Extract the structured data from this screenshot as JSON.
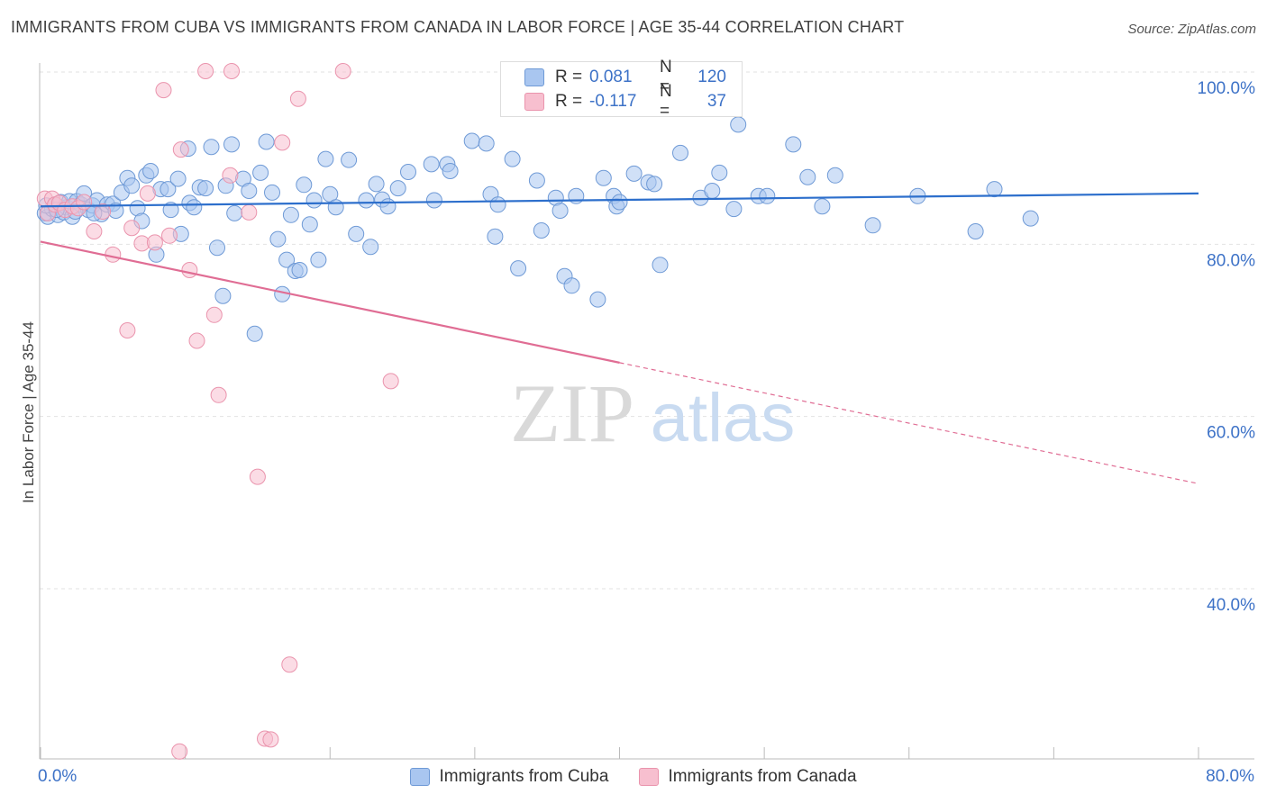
{
  "title": "IMMIGRANTS FROM CUBA VS IMMIGRANTS FROM CANADA IN LABOR FORCE | AGE 35-44 CORRELATION CHART",
  "source": "Source: ZipAtlas.com",
  "watermark": {
    "zip": "ZIP",
    "atlas": "atlas"
  },
  "legend": {
    "rows": [
      {
        "r_label": "R =",
        "r_value": "0.081",
        "n_label": "N =",
        "n_value": "120"
      },
      {
        "r_label": "R =",
        "r_value": "-0.117",
        "n_label": "N =",
        "n_value": "37"
      }
    ]
  },
  "colors": {
    "cuba_fill": "#a9c6f0",
    "cuba_stroke": "#6f9ad6",
    "cuba_line": "#2d6fcc",
    "canada_fill": "#f7bfcf",
    "canada_stroke": "#ea94ad",
    "canada_line": "#e06d94",
    "tick_text": "#3d72c7",
    "grid": "#e2e2e2"
  },
  "chart_data": {
    "type": "scatter",
    "title": "IMMIGRANTS FROM CUBA VS IMMIGRANTS FROM CANADA IN LABOR FORCE | AGE 35-44 CORRELATION CHART",
    "xlabel": "",
    "ylabel": "In Labor Force | Age 35-44",
    "xlim": [
      0,
      80
    ],
    "ylim": [
      20.5,
      101.5
    ],
    "x_tick_labels": [
      "0.0%",
      "80.0%"
    ],
    "y_ticks": [
      40,
      60,
      80,
      100
    ],
    "y_tick_labels": [
      "40.0%",
      "60.0%",
      "80.0%",
      "100.0%"
    ],
    "grid": true,
    "series": [
      {
        "name": "Immigrants from Cuba",
        "r": 0.081,
        "n": 120,
        "trend": {
          "x0": 0,
          "y0": 84.4,
          "x1": 80,
          "y1": 85.9,
          "solid_until": 80
        },
        "points": [
          [
            0.3,
            83.6
          ],
          [
            0.5,
            83.2
          ],
          [
            0.8,
            84.1
          ],
          [
            1.0,
            84.6
          ],
          [
            1.2,
            83.4
          ],
          [
            1.4,
            84.9
          ],
          [
            1.6,
            83.7
          ],
          [
            1.8,
            84.3
          ],
          [
            2.0,
            85.0
          ],
          [
            2.2,
            83.2
          ],
          [
            2.5,
            85.0
          ],
          [
            2.8,
            84.6
          ],
          [
            3.0,
            85.9
          ],
          [
            3.3,
            84.0
          ],
          [
            3.6,
            84.5
          ],
          [
            3.9,
            85.1
          ],
          [
            4.2,
            83.5
          ],
          [
            4.6,
            84.6
          ],
          [
            5.0,
            84.7
          ],
          [
            5.2,
            83.9
          ],
          [
            5.6,
            86.0
          ],
          [
            6.0,
            87.7
          ],
          [
            6.3,
            86.8
          ],
          [
            6.7,
            84.2
          ],
          [
            7.0,
            82.7
          ],
          [
            7.3,
            88.0
          ],
          [
            7.6,
            88.5
          ],
          [
            8.0,
            78.8
          ],
          [
            8.3,
            86.4
          ],
          [
            8.8,
            86.4
          ],
          [
            9.0,
            84.0
          ],
          [
            9.5,
            87.6
          ],
          [
            9.7,
            81.2
          ],
          [
            10.2,
            91.1
          ],
          [
            10.3,
            84.8
          ],
          [
            10.6,
            84.3
          ],
          [
            11.0,
            86.6
          ],
          [
            11.4,
            86.5
          ],
          [
            11.8,
            91.3
          ],
          [
            12.2,
            79.6
          ],
          [
            12.6,
            74.0
          ],
          [
            12.8,
            86.8
          ],
          [
            13.2,
            91.6
          ],
          [
            13.4,
            83.6
          ],
          [
            14.0,
            87.6
          ],
          [
            14.4,
            86.2
          ],
          [
            14.8,
            69.6
          ],
          [
            15.2,
            88.3
          ],
          [
            15.6,
            91.9
          ],
          [
            16.0,
            86.0
          ],
          [
            16.4,
            80.6
          ],
          [
            16.7,
            74.2
          ],
          [
            17.0,
            78.2
          ],
          [
            17.3,
            83.4
          ],
          [
            17.6,
            76.9
          ],
          [
            17.9,
            77.0
          ],
          [
            18.2,
            86.9
          ],
          [
            18.6,
            82.3
          ],
          [
            18.9,
            85.1
          ],
          [
            19.2,
            78.2
          ],
          [
            19.7,
            89.9
          ],
          [
            20.0,
            85.8
          ],
          [
            20.4,
            84.3
          ],
          [
            21.3,
            89.8
          ],
          [
            21.8,
            81.2
          ],
          [
            22.5,
            85.1
          ],
          [
            22.8,
            79.7
          ],
          [
            23.2,
            87.0
          ],
          [
            23.6,
            85.2
          ],
          [
            24.0,
            84.4
          ],
          [
            24.7,
            86.5
          ],
          [
            25.4,
            88.4
          ],
          [
            27.0,
            89.3
          ],
          [
            27.2,
            85.1
          ],
          [
            28.1,
            89.3
          ],
          [
            28.3,
            88.5
          ],
          [
            29.8,
            92.0
          ],
          [
            30.8,
            91.7
          ],
          [
            31.1,
            85.8
          ],
          [
            31.4,
            80.9
          ],
          [
            31.6,
            84.6
          ],
          [
            32.6,
            89.9
          ],
          [
            33.0,
            77.2
          ],
          [
            34.3,
            87.4
          ],
          [
            34.6,
            81.6
          ],
          [
            35.6,
            85.4
          ],
          [
            35.9,
            83.9
          ],
          [
            36.2,
            76.3
          ],
          [
            36.7,
            75.2
          ],
          [
            37.0,
            85.6
          ],
          [
            38.5,
            73.6
          ],
          [
            38.9,
            87.7
          ],
          [
            39.6,
            85.6
          ],
          [
            39.8,
            84.4
          ],
          [
            40.0,
            84.9
          ],
          [
            41.0,
            88.2
          ],
          [
            42.0,
            87.2
          ],
          [
            42.4,
            87.0
          ],
          [
            42.8,
            77.6
          ],
          [
            44.2,
            90.6
          ],
          [
            45.6,
            85.4
          ],
          [
            46.4,
            86.2
          ],
          [
            46.9,
            88.3
          ],
          [
            47.9,
            84.1
          ],
          [
            48.2,
            93.9
          ],
          [
            49.6,
            85.6
          ],
          [
            50.2,
            85.6
          ],
          [
            52.0,
            91.6
          ],
          [
            53.0,
            87.8
          ],
          [
            54.0,
            84.4
          ],
          [
            54.9,
            88.0
          ],
          [
            57.5,
            82.2
          ],
          [
            60.6,
            85.6
          ],
          [
            64.6,
            81.5
          ],
          [
            65.9,
            86.4
          ],
          [
            68.4,
            83.0
          ],
          [
            0.4,
            84.5
          ],
          [
            1.1,
            84.0
          ],
          [
            2.4,
            83.8
          ],
          [
            3.7,
            83.6
          ]
        ]
      },
      {
        "name": "Immigrants from Canada",
        "r": -0.117,
        "n": 37,
        "trend": {
          "x0": 0,
          "y0": 80.3,
          "x1": 80,
          "y1": 52.2,
          "solid_until": 40
        },
        "points": [
          [
            0.3,
            85.3
          ],
          [
            0.5,
            83.6
          ],
          [
            0.8,
            85.3
          ],
          [
            1.0,
            84.6
          ],
          [
            1.3,
            84.8
          ],
          [
            1.7,
            84.0
          ],
          [
            2.2,
            84.4
          ],
          [
            2.6,
            84.2
          ],
          [
            3.0,
            84.9
          ],
          [
            3.7,
            81.5
          ],
          [
            4.3,
            83.8
          ],
          [
            5.0,
            78.8
          ],
          [
            6.0,
            70.0
          ],
          [
            6.3,
            81.9
          ],
          [
            7.0,
            80.1
          ],
          [
            7.4,
            85.9
          ],
          [
            7.9,
            80.2
          ],
          [
            8.5,
            97.9
          ],
          [
            8.9,
            81.0
          ],
          [
            9.7,
            91.0
          ],
          [
            10.3,
            77.0
          ],
          [
            10.8,
            68.8
          ],
          [
            11.4,
            100.1
          ],
          [
            12.0,
            71.8
          ],
          [
            12.3,
            62.5
          ],
          [
            13.1,
            88.0
          ],
          [
            13.2,
            100.1
          ],
          [
            14.4,
            83.7
          ],
          [
            15.0,
            53.0
          ],
          [
            15.5,
            22.6
          ],
          [
            15.9,
            22.5
          ],
          [
            16.7,
            91.8
          ],
          [
            17.2,
            31.2
          ],
          [
            17.8,
            96.9
          ],
          [
            20.9,
            100.1
          ],
          [
            24.2,
            64.1
          ],
          [
            9.6,
            21.1
          ]
        ]
      }
    ]
  }
}
